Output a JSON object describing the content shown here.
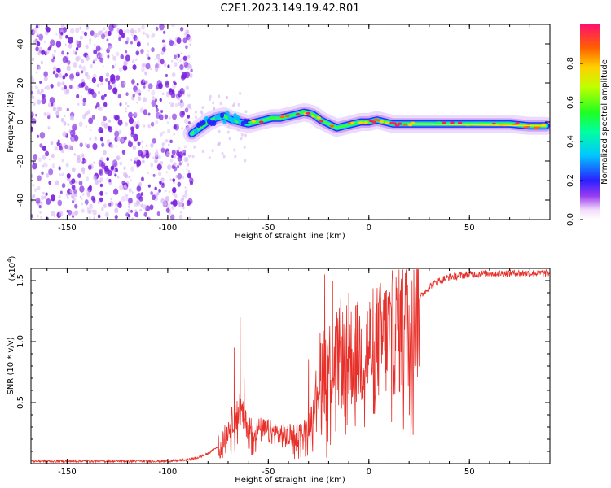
{
  "title": "C2E1.2023.149.19.42.R01",
  "chart_data": [
    {
      "type": "heatmap",
      "name": "doppler-spectrogram",
      "xlabel": "Height of straight line (km)",
      "ylabel": "Frequency (Hz)",
      "xlim": [
        -168,
        90
      ],
      "ylim": [
        -50,
        50
      ],
      "x_ticks": [
        -150,
        -100,
        -50,
        0,
        50
      ],
      "y_ticks": [
        -40,
        -20,
        0,
        20,
        40
      ],
      "noise_region_km": [
        -168,
        -88
      ],
      "ridge": {
        "x": [
          -88,
          -84,
          -80,
          -76,
          -72,
          -68,
          -64,
          -60,
          -56,
          -52,
          -48,
          -44,
          -40,
          -36,
          -32,
          -28,
          -24,
          -20,
          -16,
          -12,
          -8,
          -4,
          0,
          4,
          8,
          12,
          16,
          20,
          30,
          40,
          50,
          60,
          70,
          80,
          88
        ],
        "y": [
          -6,
          -3,
          0,
          2,
          3,
          1,
          0,
          -1,
          0,
          1,
          2,
          2,
          3,
          4,
          5,
          4,
          1,
          -1,
          -3,
          -2,
          -1,
          0,
          0,
          1,
          0,
          -1,
          -1,
          -1,
          -1,
          -1,
          -1,
          -1,
          -1,
          -2,
          -2
        ]
      },
      "colorbar": {
        "label": "Normalized spectral amplitude",
        "range": [
          0.0,
          1.0
        ],
        "ticks": [
          0.0,
          0.2,
          0.4,
          0.6,
          0.8
        ],
        "tick_labels": [
          "0.0",
          "0.2",
          "0.4",
          "0.6",
          "0.8"
        ]
      }
    },
    {
      "type": "line",
      "name": "snr-trace",
      "xlabel": "Height of straight line (km)",
      "ylabel": "SNR (10 * v/v)",
      "y_multiplier": "(x10",
      "y_multiplier_exp": "4",
      "y_multiplier_close": ")",
      "xlim": [
        -168,
        90
      ],
      "ylim": [
        0,
        1.6
      ],
      "x_ticks": [
        -150,
        -100,
        -50,
        0,
        50
      ],
      "y_ticks": [
        0.5,
        1.0,
        1.5
      ],
      "y_tick_labels": [
        "0.5",
        "1.0",
        "1.5"
      ],
      "color": "#e8302a",
      "envelope": {
        "x": [
          -168,
          -100,
          -90,
          -85,
          -80,
          -75,
          -72,
          -70,
          -68,
          -66,
          -64,
          -62,
          -60,
          -55,
          -50,
          -45,
          -40,
          -35,
          -30,
          -28,
          -26,
          -24,
          -22,
          -20,
          -15,
          -10,
          -5,
          0,
          5,
          10,
          15,
          20,
          25,
          30,
          35,
          40,
          50,
          60,
          70,
          80,
          90
        ],
        "y": [
          0.02,
          0.02,
          0.03,
          0.05,
          0.08,
          0.14,
          0.2,
          0.28,
          0.35,
          0.4,
          0.45,
          0.35,
          0.3,
          0.28,
          0.26,
          0.24,
          0.22,
          0.24,
          0.3,
          0.45,
          0.6,
          0.75,
          0.8,
          0.82,
          0.85,
          0.88,
          0.9,
          0.95,
          1.0,
          1.05,
          1.1,
          1.2,
          1.35,
          1.45,
          1.5,
          1.53,
          1.55,
          1.56,
          1.56,
          1.56,
          1.56
        ]
      },
      "spikes": [
        {
          "x": -64,
          "y": 1.2
        },
        {
          "x": -67,
          "y": 0.95
        },
        {
          "x": -62,
          "y": 0.7
        },
        {
          "x": -30,
          "y": 0.85
        },
        {
          "x": -22,
          "y": 1.55
        },
        {
          "x": -21,
          "y": 0.05
        },
        {
          "x": -18,
          "y": 1.5
        },
        {
          "x": -14,
          "y": 1.35
        },
        {
          "x": -10,
          "y": 1.4
        },
        {
          "x": -6,
          "y": 1.3
        },
        {
          "x": 4,
          "y": 1.3
        },
        {
          "x": 10,
          "y": 1.4
        },
        {
          "x": 16,
          "y": 1.45
        }
      ]
    }
  ],
  "colors": {
    "noise": "#7a1fe0",
    "noise_light": "#d9b8f5",
    "trace": "#e8302a"
  }
}
